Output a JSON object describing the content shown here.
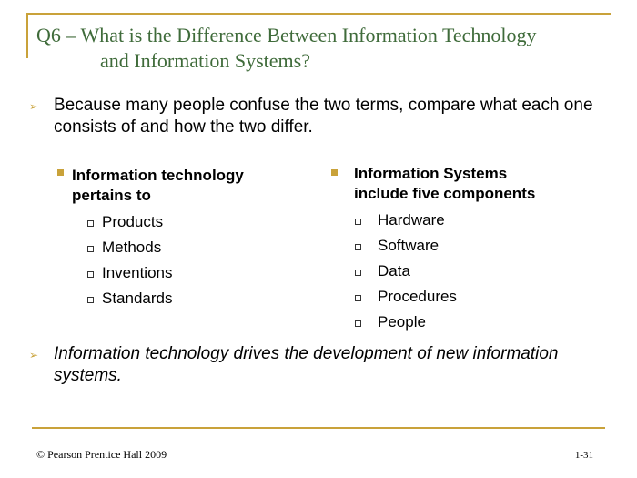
{
  "slide": {
    "title_line1": "Q6 – What is the Difference Between Information Technology",
    "title_line2": "and Information Systems?",
    "intro": "Because many people confuse the two terms, compare what each one consists of and how the two differ.",
    "left": {
      "heading_line1": "Information technology",
      "heading_line2": "pertains to",
      "items": [
        "Products",
        "Methods",
        "Inventions",
        "Standards"
      ]
    },
    "right": {
      "heading_line1": "Information Systems",
      "heading_line2": "include five components",
      "items": [
        "Hardware",
        "Software",
        "Data",
        "Procedures",
        "People"
      ]
    },
    "closing": "Information technology drives the development of new information systems.",
    "bullet_glyph": "➢"
  },
  "footer": {
    "copyright": "© Pearson Prentice Hall 2009",
    "page_number": "1-31"
  },
  "colors": {
    "accent": "#c9a23a",
    "title": "#3f6b3a"
  }
}
